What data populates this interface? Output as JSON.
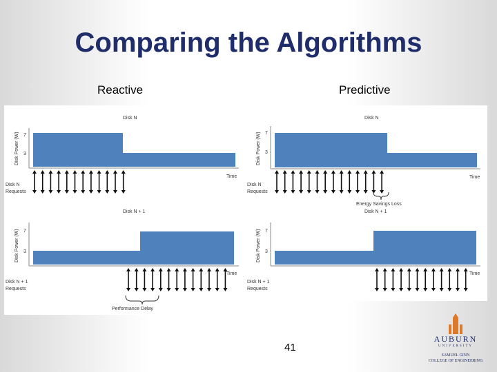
{
  "slide": {
    "title": "Comparing the Algorithms",
    "number": "41"
  },
  "columns": {
    "reactive": "Reactive",
    "predictive": "Predictive"
  },
  "diagram_labels": {
    "disk_n": "Disk N",
    "disk_n1": "Disk N + 1",
    "y_axis": "Disk Power (W)",
    "tick_high": "7",
    "tick_low": "3",
    "time": "Time",
    "disk_n_requests_1": "Disk N",
    "disk_n_requests_2": "Requests",
    "disk_n1_requests_1": "Disk N + 1",
    "disk_n1_requests_2": "Requests",
    "performance_delay": "Performance Delay",
    "energy_savings_loss": "Energy Savings Loss"
  },
  "logo": {
    "name": "AUBURN",
    "sub": "UNIVERSITY",
    "college_1": "SAMUEL GINN",
    "college_2": "COLLEGE OF ENGINEERING"
  },
  "colors": {
    "bar": "#4f81bd",
    "title": "#1f2d6b"
  }
}
